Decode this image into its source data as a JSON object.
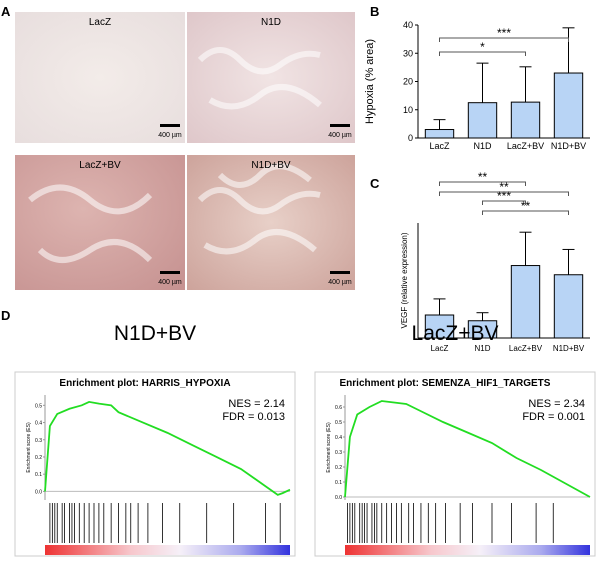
{
  "panel_labels": [
    "A",
    "B",
    "C",
    "D"
  ],
  "panel_a": {
    "images": [
      {
        "label": "LacZ",
        "scale": "400 µm"
      },
      {
        "label": "N1D",
        "scale": "400 µm"
      },
      {
        "label": "LacZ+BV",
        "scale": "400 µm"
      },
      {
        "label": "N1D+BV",
        "scale": "400 µm"
      }
    ]
  },
  "chart_data": [
    {
      "type": "bar",
      "ylabel": "Hypoxia (% area)",
      "categories": [
        "LacZ",
        "N1D",
        "LacZ+BV",
        "N1D+BV"
      ],
      "values": [
        3,
        12.5,
        12.7,
        23
      ],
      "errors": [
        3.5,
        14,
        12.5,
        16
      ],
      "color": "#b8d4f5",
      "ylim": [
        0,
        40
      ],
      "yticks": [
        0,
        10,
        20,
        30,
        40
      ],
      "significance": [
        {
          "between": [
            "LacZ",
            "LacZ+BV"
          ],
          "label": "*"
        },
        {
          "between": [
            "LacZ",
            "N1D+BV"
          ],
          "label": "***"
        }
      ]
    },
    {
      "type": "bar",
      "ylabel": "VEGF (relative expression)",
      "categories": [
        "LacZ",
        "N1D",
        "LacZ+BV",
        "N1D+BV"
      ],
      "values": [
        1.0,
        0.75,
        3.15,
        2.75
      ],
      "errors": [
        0.7,
        0.35,
        1.45,
        1.1
      ],
      "color": "#b8d4f5",
      "ylim": [
        0,
        5
      ],
      "significance": [
        {
          "between": [
            "LacZ",
            "N1D+BV"
          ],
          "label": "**"
        },
        {
          "between": [
            "LacZ",
            "LacZ+BV"
          ],
          "label": "**"
        },
        {
          "between": [
            "N1D",
            "N1D+BV"
          ],
          "label": "**"
        },
        {
          "between": [
            "N1D",
            "LacZ+BV"
          ],
          "label": "***"
        }
      ]
    },
    {
      "type": "line",
      "title": "N1D+BV",
      "subtitle": "Enrichment plot: HARRIS_HYPOXIA",
      "ylabel": "Enrichment score (ES)",
      "annotations": [
        "NES = 2.14",
        "FDR = 0.013"
      ],
      "x": [
        0,
        2,
        5,
        10,
        15,
        18,
        22,
        27,
        30,
        40,
        50,
        60,
        70,
        80,
        85,
        90,
        95,
        97,
        100
      ],
      "values": [
        0,
        0.38,
        0.45,
        0.48,
        0.5,
        0.52,
        0.51,
        0.5,
        0.46,
        0.4,
        0.34,
        0.27,
        0.2,
        0.13,
        0.08,
        0.03,
        -0.02,
        -0.01,
        0.01
      ],
      "color": "#22dd22",
      "xlim": [
        0,
        100
      ],
      "ylim": [
        -0.05,
        0.56
      ],
      "yticks": [
        {
          "value": 0,
          "label": "0.0"
        },
        0.1,
        0.2,
        0.3,
        0.4,
        0.5
      ],
      "hits": [
        2,
        3,
        4,
        5,
        7,
        8,
        10,
        11,
        12,
        14,
        16,
        18,
        20,
        22,
        24,
        27,
        30,
        33,
        35,
        38,
        42,
        48,
        55,
        66,
        77,
        90,
        96
      ]
    },
    {
      "type": "line",
      "title": "LacZ+BV",
      "subtitle": "Enrichment plot: SEMENZA_HIF1_TARGETS",
      "ylabel": "Enrichment score (ES)",
      "annotations": [
        "NES = 2.34",
        "FDR = 0.001"
      ],
      "x": [
        0,
        2,
        5,
        10,
        15,
        20,
        25,
        30,
        40,
        50,
        60,
        70,
        80,
        90,
        100
      ],
      "values": [
        0,
        0.4,
        0.55,
        0.6,
        0.64,
        0.63,
        0.62,
        0.58,
        0.5,
        0.43,
        0.36,
        0.26,
        0.18,
        0.09,
        0
      ],
      "color": "#22dd22",
      "xlim": [
        0,
        100
      ],
      "ylim": [
        -0.02,
        0.68
      ],
      "yticks": [
        {
          "value": 0,
          "label": "0.0"
        },
        0.1,
        0.2,
        0.3,
        0.4,
        0.5,
        0.6
      ],
      "hits": [
        1,
        2,
        3,
        4,
        6,
        7,
        8,
        9,
        11,
        12,
        13,
        15,
        17,
        19,
        21,
        23,
        26,
        28,
        31,
        34,
        37,
        41,
        47,
        52,
        60,
        68,
        78,
        85
      ]
    }
  ]
}
